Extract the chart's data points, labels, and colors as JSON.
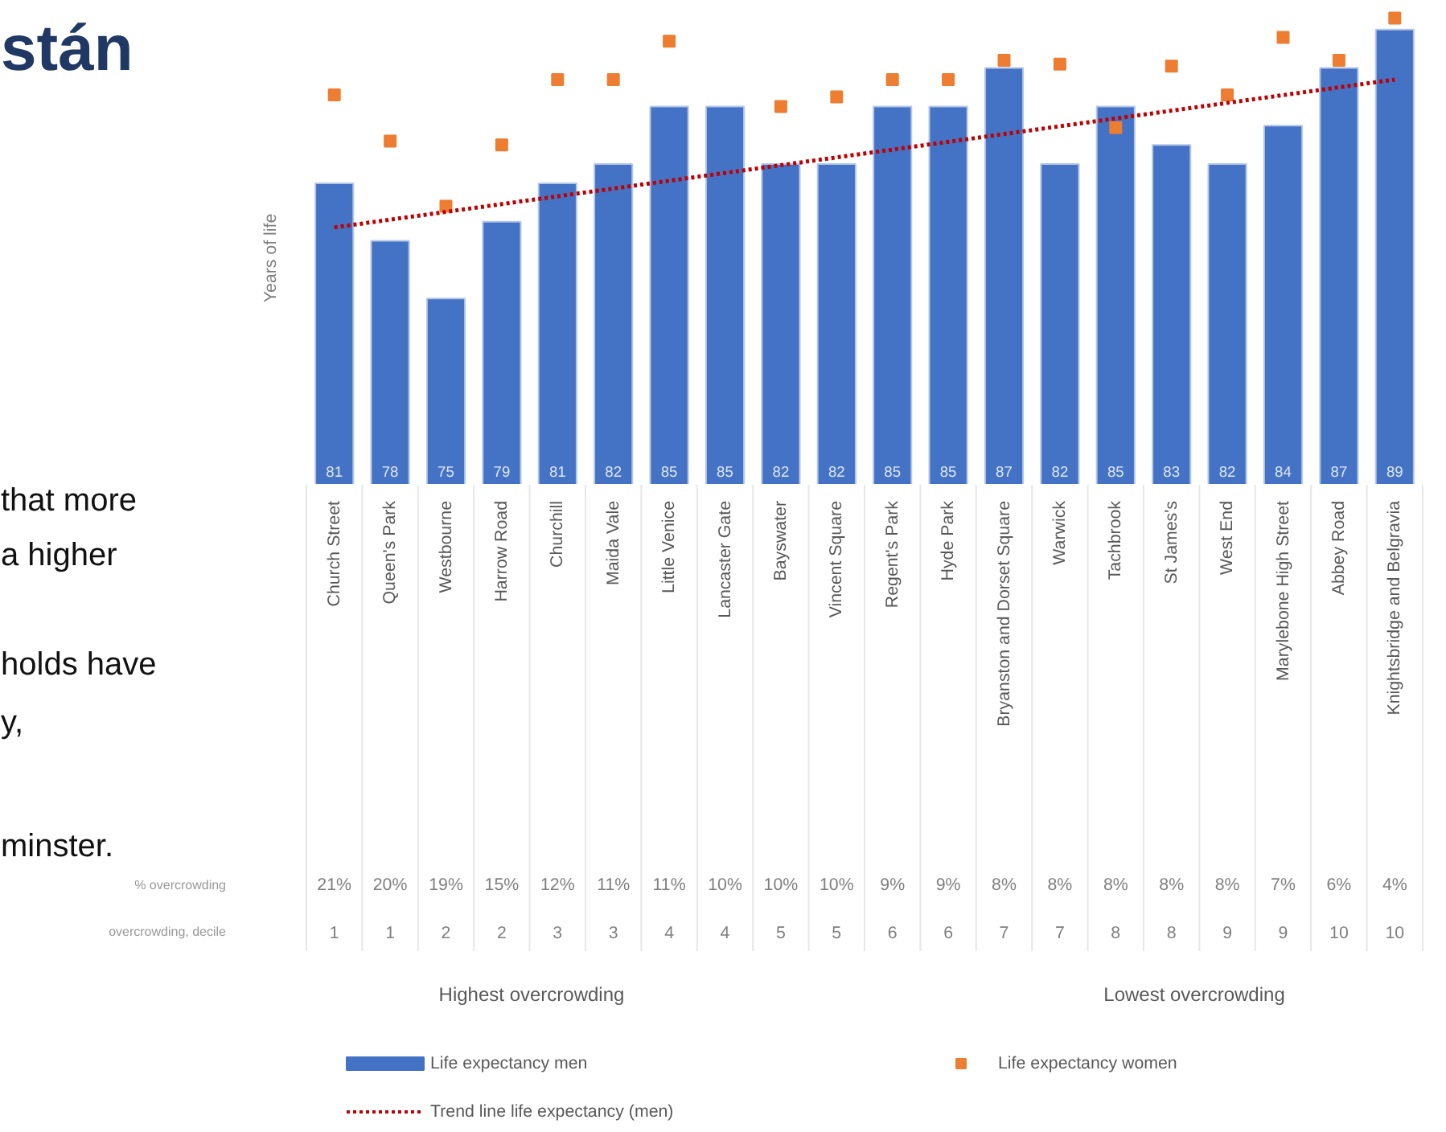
{
  "chart_data": {
    "type": "bar",
    "title": "stán",
    "ylabel": "Years of life",
    "categories": [
      "Church Street",
      "Queen's Park",
      "Westbourne",
      "Harrow Road",
      "Churchill",
      "Maida Vale",
      "Little Venice",
      "Lancaster Gate",
      "Bayswater",
      "Vincent Square",
      "Regent's Park",
      "Hyde Park",
      "Bryanston and Dorset Square",
      "Warwick",
      "Tachbrook",
      "St James's",
      "West End",
      "Marylebone High Street",
      "Abbey Road",
      "Knightsbridge and Belgravia"
    ],
    "ylim": [
      65.3,
      90.5
    ],
    "grid": false,
    "legend": "bottom",
    "tick_labels": "x",
    "series": [
      {
        "name": "Life expectancy men",
        "color": "#4472c4",
        "values": [
          81,
          78,
          75,
          79,
          81,
          82,
          85,
          85,
          82,
          82,
          85,
          85,
          87,
          82,
          85,
          83,
          82,
          84,
          87,
          89
        ],
        "value_labels": [
          "81",
          "78",
          "75",
          "79",
          "81",
          "82",
          "85",
          "85",
          "82",
          "82",
          "85",
          "85",
          "87",
          "82",
          "85",
          "83",
          "82",
          "84",
          "87",
          "89"
        ]
      },
      {
        "name": "Life expectancy women",
        "type": "scatter",
        "marker": "square",
        "color": "#ed7d31",
        "values": [
          85.6,
          83.2,
          79.8,
          83.0,
          86.4,
          86.4,
          88.4,
          null,
          85.0,
          85.5,
          86.4,
          86.4,
          87.4,
          87.2,
          83.9,
          87.1,
          85.6,
          88.6,
          87.4,
          89.6
        ]
      },
      {
        "name": "Trend line life expectancy (men)",
        "type": "line",
        "color": "#c00000",
        "line_style": "dotted",
        "x": [
          "Church Street",
          "Knightsbridge and Belgravia"
        ],
        "values": [
          78.7,
          86.4
        ]
      }
    ],
    "annotations": [
      "that more",
      "a higher",
      "holds have",
      "y,",
      "minster.",
      "% overcrowding",
      "overcrowding, decile",
      "21%",
      "20%",
      "19%",
      "15%",
      "12%",
      "11%",
      "11%",
      "10%",
      "10%",
      "10%",
      "9%",
      "9%",
      "8%",
      "8%",
      "8%",
      "8%",
      "8%",
      "7%",
      "6%",
      "4%",
      "1",
      "1",
      "2",
      "2",
      "3",
      "3",
      "4",
      "4",
      "5",
      "5",
      "6",
      "6",
      "7",
      "7",
      "8",
      "8",
      "9",
      "9",
      "10",
      "10",
      "Highest overcrowding",
      "Lowest overcrowding"
    ]
  }
}
